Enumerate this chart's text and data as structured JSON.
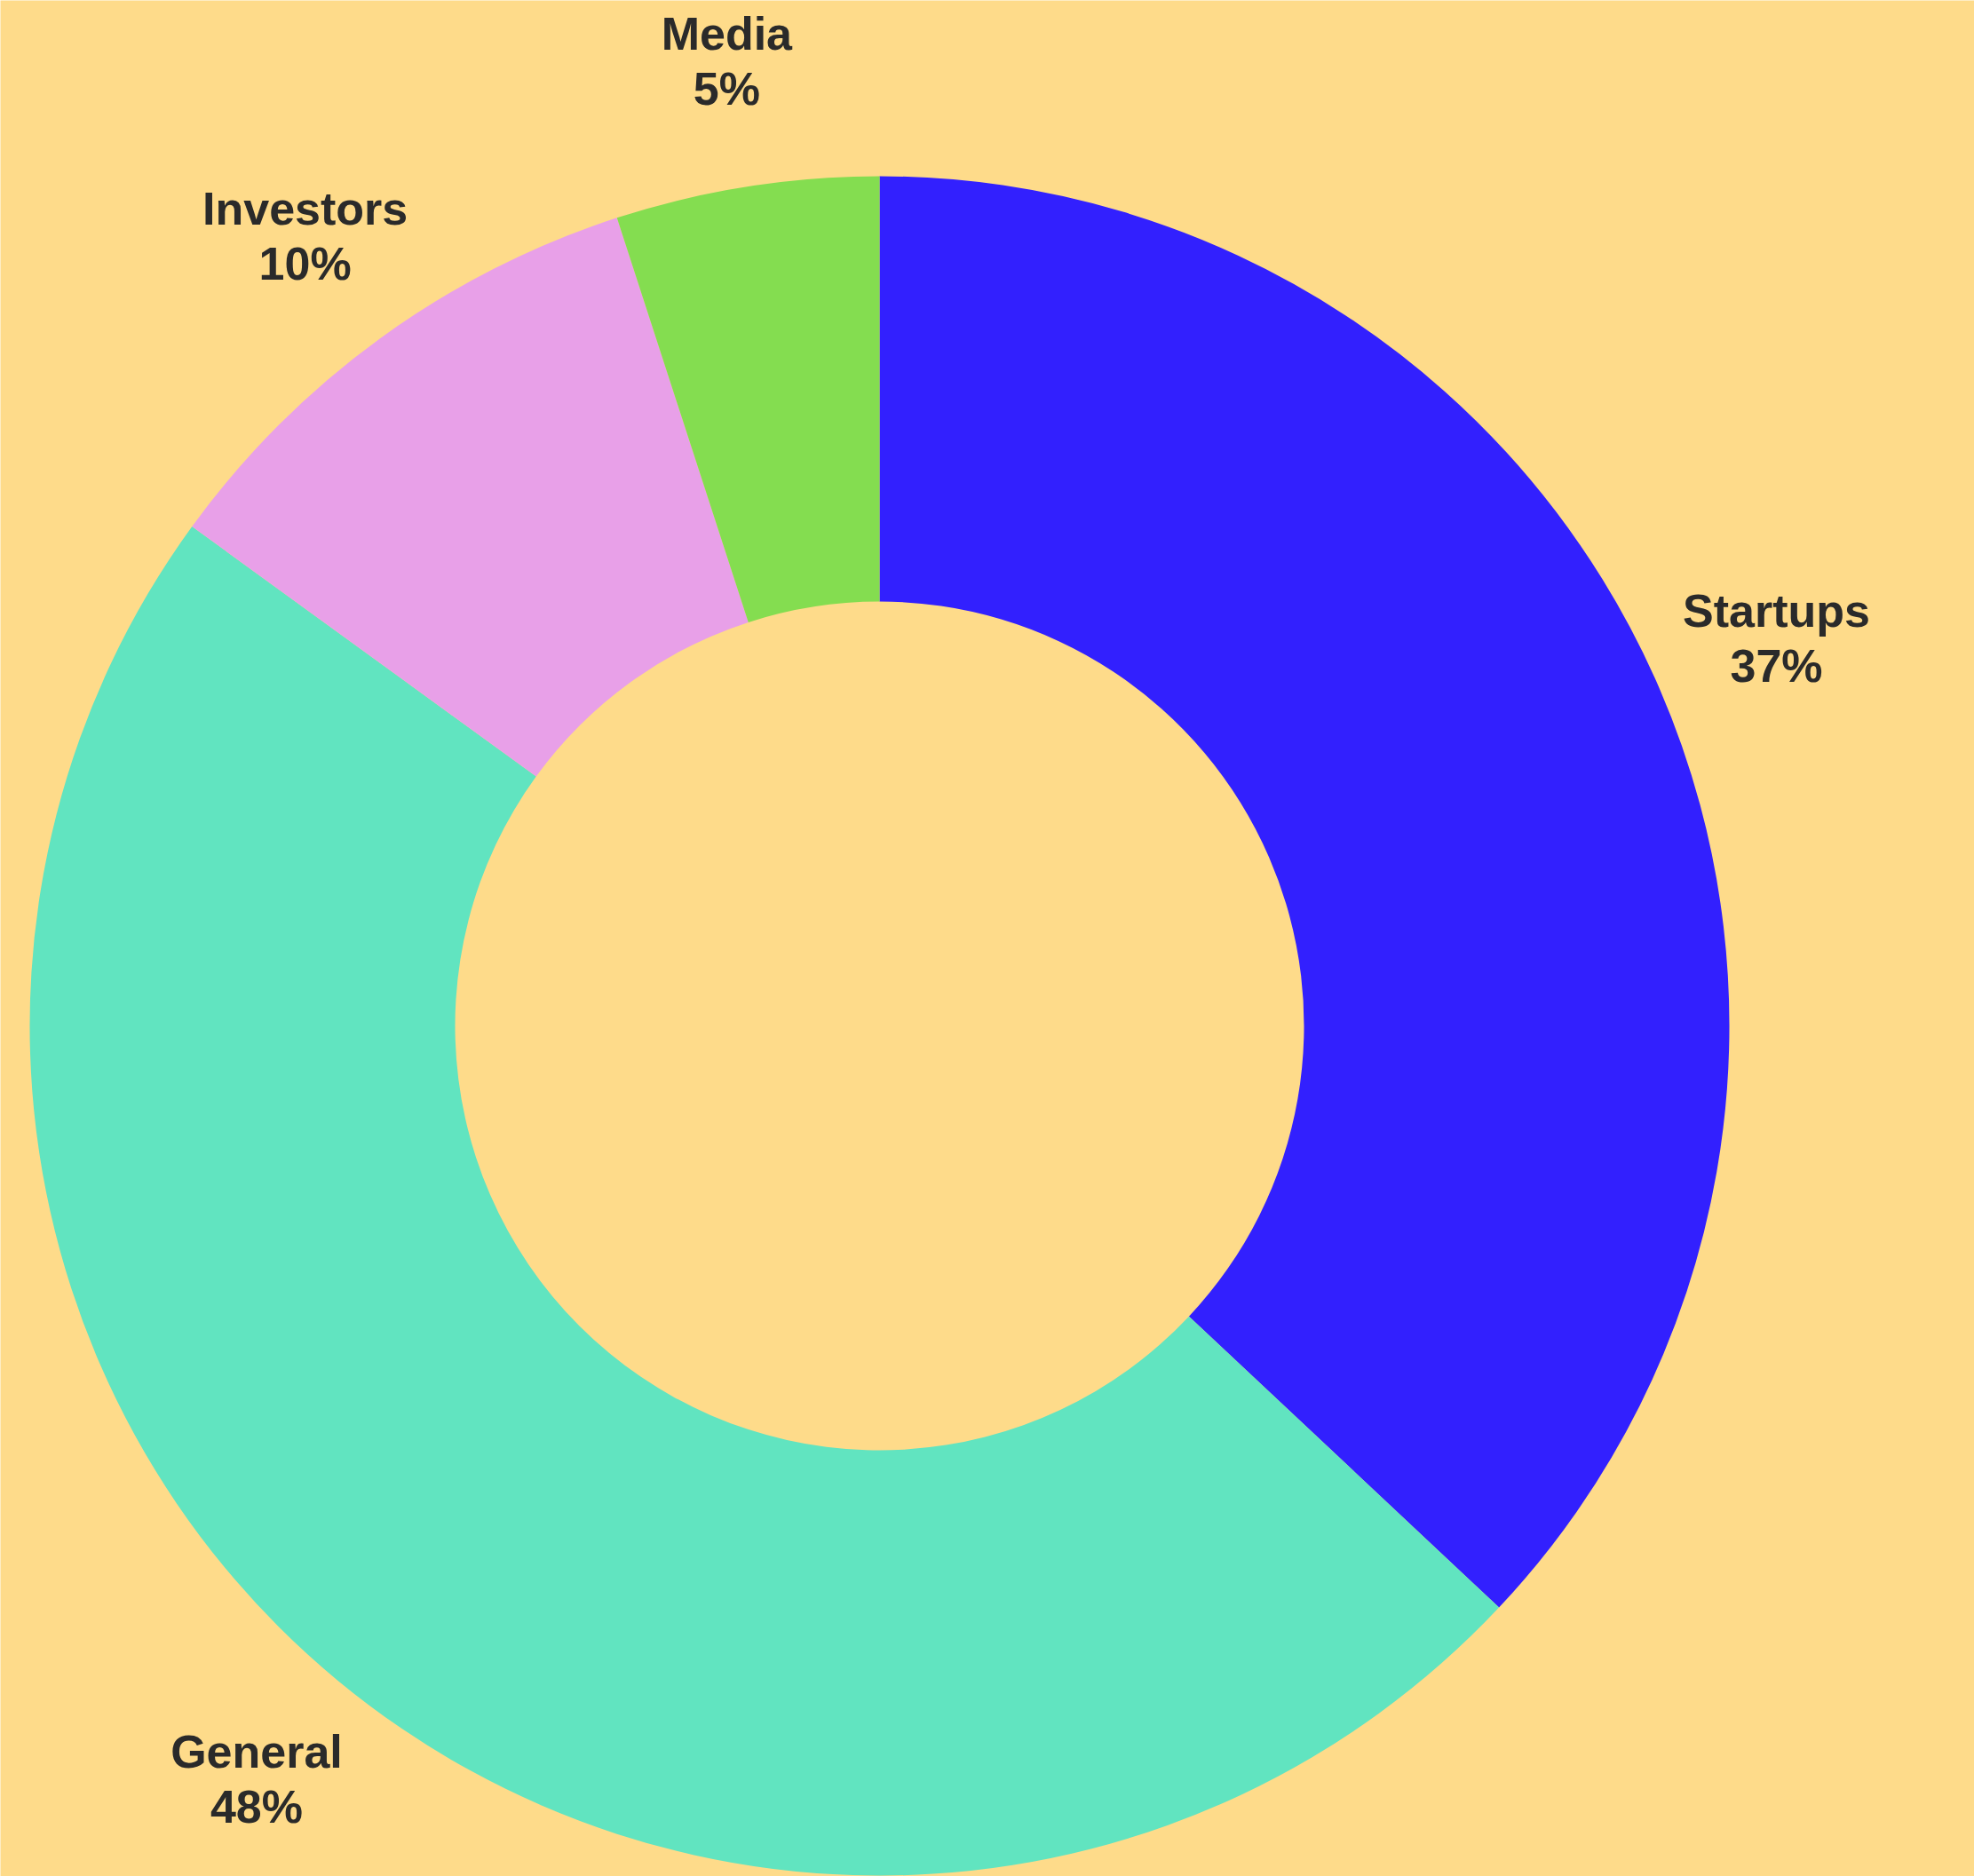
{
  "chart_data": {
    "type": "donut",
    "categories": [
      "Startups",
      "General",
      "Investors",
      "Media"
    ],
    "values": [
      37,
      48,
      10,
      5
    ],
    "colors": [
      "#3220fe",
      "#61e4c0",
      "#e8a0e8",
      "#84dd50"
    ],
    "value_labels": [
      "37%",
      "48%",
      "10%",
      "5%"
    ]
  }
}
